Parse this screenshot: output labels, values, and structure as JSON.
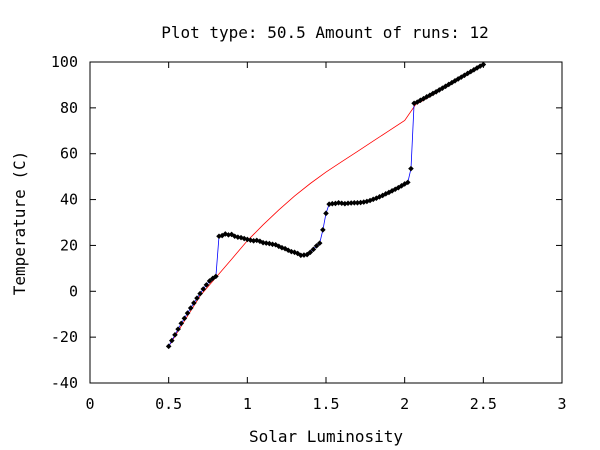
{
  "chart_data": {
    "type": "line",
    "title": "Plot type: 50.5 Amount of runs: 12",
    "xlabel": "Solar Luminosity",
    "ylabel": "Temperature (C)",
    "xlim": [
      0,
      3
    ],
    "ylim": [
      -40,
      100
    ],
    "xticks": [
      "0",
      "0.5",
      "1",
      "1.5",
      "2",
      "2.5",
      "3"
    ],
    "yticks": [
      "-40",
      "-20",
      "0",
      "20",
      "40",
      "60",
      "80",
      "100"
    ],
    "grid": false,
    "legend": "none",
    "series": [
      {
        "color": "#ff0000",
        "style": "smooth-curve",
        "points": [
          [
            0.5,
            -24
          ],
          [
            0.6,
            -13
          ],
          [
            0.7,
            -2
          ],
          [
            0.8,
            6
          ],
          [
            0.9,
            14
          ],
          [
            1.0,
            22
          ],
          [
            1.1,
            29
          ],
          [
            1.2,
            35.5
          ],
          [
            1.3,
            41.5
          ],
          [
            1.4,
            47
          ],
          [
            1.5,
            52
          ],
          [
            1.6,
            56.5
          ],
          [
            1.7,
            61
          ],
          [
            1.8,
            65.5
          ],
          [
            1.9,
            70
          ],
          [
            2.0,
            74.5
          ],
          [
            2.07,
            81.5
          ],
          [
            2.1,
            82.5
          ],
          [
            2.2,
            86.5
          ],
          [
            2.3,
            90.5
          ],
          [
            2.4,
            94.5
          ],
          [
            2.5,
            98.5
          ]
        ]
      },
      {
        "color": "#0000ff",
        "marker": "diamond",
        "marker_color": "#000000",
        "points": [
          [
            0.5,
            -24.0
          ],
          [
            0.52,
            -21.5
          ],
          [
            0.54,
            -19.0
          ],
          [
            0.56,
            -16.5
          ],
          [
            0.58,
            -14.0
          ],
          [
            0.6,
            -11.8
          ],
          [
            0.62,
            -9.5
          ],
          [
            0.64,
            -7.3
          ],
          [
            0.66,
            -5.1
          ],
          [
            0.68,
            -3.0
          ],
          [
            0.7,
            -1.0
          ],
          [
            0.72,
            1.0
          ],
          [
            0.74,
            2.8
          ],
          [
            0.76,
            4.5
          ],
          [
            0.78,
            5.6
          ],
          [
            0.8,
            6.5
          ],
          [
            0.82,
            24.0
          ],
          [
            0.84,
            24.3
          ],
          [
            0.86,
            25.0
          ],
          [
            0.88,
            24.6
          ],
          [
            0.9,
            24.8
          ],
          [
            0.92,
            24.0
          ],
          [
            0.94,
            23.6
          ],
          [
            0.96,
            23.4
          ],
          [
            0.98,
            23.0
          ],
          [
            1.0,
            22.6
          ],
          [
            1.02,
            22.3
          ],
          [
            1.04,
            22.0
          ],
          [
            1.06,
            22.2
          ],
          [
            1.08,
            21.8
          ],
          [
            1.1,
            21.2
          ],
          [
            1.12,
            21.0
          ],
          [
            1.14,
            20.8
          ],
          [
            1.16,
            20.5
          ],
          [
            1.18,
            20.3
          ],
          [
            1.2,
            19.6
          ],
          [
            1.22,
            19.0
          ],
          [
            1.24,
            18.6
          ],
          [
            1.26,
            17.9
          ],
          [
            1.28,
            17.3
          ],
          [
            1.3,
            17.0
          ],
          [
            1.32,
            16.5
          ],
          [
            1.34,
            15.7
          ],
          [
            1.36,
            15.8
          ],
          [
            1.38,
            16.0
          ],
          [
            1.4,
            17.0
          ],
          [
            1.42,
            18.3
          ],
          [
            1.44,
            19.8
          ],
          [
            1.46,
            21.0
          ],
          [
            1.48,
            26.8
          ],
          [
            1.5,
            34.0
          ],
          [
            1.52,
            38.0
          ],
          [
            1.54,
            38.2
          ],
          [
            1.56,
            38.3
          ],
          [
            1.58,
            38.6
          ],
          [
            1.6,
            38.4
          ],
          [
            1.62,
            38.2
          ],
          [
            1.64,
            38.4
          ],
          [
            1.66,
            38.5
          ],
          [
            1.68,
            38.6
          ],
          [
            1.7,
            38.6
          ],
          [
            1.72,
            38.7
          ],
          [
            1.74,
            38.9
          ],
          [
            1.76,
            39.2
          ],
          [
            1.78,
            39.6
          ],
          [
            1.8,
            40.1
          ],
          [
            1.82,
            40.6
          ],
          [
            1.84,
            41.2
          ],
          [
            1.86,
            41.8
          ],
          [
            1.88,
            42.5
          ],
          [
            1.9,
            43.1
          ],
          [
            1.92,
            43.8
          ],
          [
            1.94,
            44.5
          ],
          [
            1.96,
            45.2
          ],
          [
            1.98,
            46.0
          ],
          [
            2.0,
            46.8
          ],
          [
            2.02,
            47.5
          ],
          [
            2.04,
            53.5
          ],
          [
            2.06,
            82.0
          ],
          [
            2.08,
            82.5
          ],
          [
            2.1,
            83.3
          ],
          [
            2.12,
            84.0
          ],
          [
            2.14,
            84.8
          ],
          [
            2.16,
            85.5
          ],
          [
            2.18,
            86.3
          ],
          [
            2.2,
            87.0
          ],
          [
            2.22,
            87.8
          ],
          [
            2.24,
            88.6
          ],
          [
            2.26,
            89.4
          ],
          [
            2.28,
            90.2
          ],
          [
            2.3,
            91.0
          ],
          [
            2.32,
            91.8
          ],
          [
            2.34,
            92.6
          ],
          [
            2.36,
            93.4
          ],
          [
            2.38,
            94.2
          ],
          [
            2.4,
            95.0
          ],
          [
            2.42,
            95.8
          ],
          [
            2.44,
            96.6
          ],
          [
            2.46,
            97.4
          ],
          [
            2.48,
            98.2
          ],
          [
            2.5,
            98.9
          ]
        ]
      }
    ]
  }
}
